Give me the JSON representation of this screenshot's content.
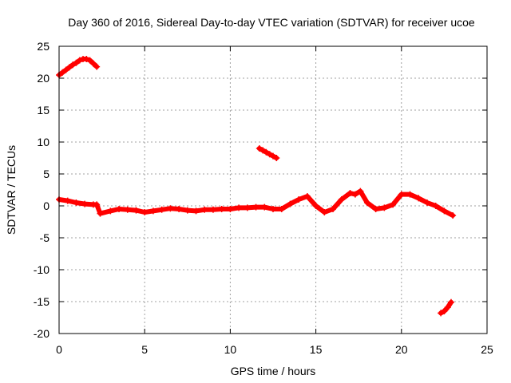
{
  "chart_data": {
    "type": "scatter",
    "title": "Day 360 of 2016, Sidereal Day-to-day VTEC variation (SDTVAR) for receiver ucoe",
    "xlabel": "GPS time / hours",
    "ylabel": "SDTVAR / TECUs",
    "xlim": [
      0,
      25
    ],
    "ylim": [
      -20,
      25
    ],
    "xticks": [
      0,
      5,
      10,
      15,
      20,
      25
    ],
    "yticks": [
      -20,
      -15,
      -10,
      -5,
      0,
      5,
      10,
      15,
      20,
      25
    ],
    "grid": true,
    "marker": "+",
    "colors": {
      "series": "#ff0000",
      "axis": "#000000",
      "grid": "#a0a0a0"
    },
    "series": [
      {
        "name": "segment-early-high",
        "x": [
          0.0,
          0.2,
          0.4,
          0.6,
          0.8,
          1.0,
          1.2,
          1.4,
          1.6,
          1.8,
          2.0,
          2.2
        ],
        "y": [
          20.5,
          20.9,
          21.3,
          21.7,
          22.1,
          22.4,
          22.8,
          23.0,
          23.0,
          22.8,
          22.3,
          21.8
        ]
      },
      {
        "name": "segment-main",
        "x": [
          0.0,
          0.5,
          1.0,
          1.5,
          2.0,
          2.2,
          2.4,
          3.0,
          3.5,
          4.0,
          4.5,
          5.0,
          5.5,
          6.0,
          6.5,
          7.0,
          7.5,
          8.0,
          8.5,
          9.0,
          9.5,
          10.0,
          10.5,
          11.0,
          11.5,
          12.0,
          12.5,
          13.0,
          13.5,
          14.0,
          14.5,
          15.0,
          15.5,
          16.0,
          16.5,
          17.0,
          17.3,
          17.6,
          18.0,
          18.5,
          19.0,
          19.5,
          20.0,
          20.5,
          21.0,
          21.5,
          22.0,
          22.5,
          23.0
        ],
        "y": [
          1.0,
          0.8,
          0.5,
          0.3,
          0.2,
          0.2,
          -1.2,
          -0.8,
          -0.5,
          -0.6,
          -0.7,
          -1.0,
          -0.8,
          -0.6,
          -0.4,
          -0.5,
          -0.7,
          -0.8,
          -0.6,
          -0.6,
          -0.5,
          -0.5,
          -0.3,
          -0.3,
          -0.2,
          -0.2,
          -0.5,
          -0.5,
          0.3,
          1.0,
          1.5,
          0.0,
          -1.0,
          -0.5,
          1.0,
          2.0,
          1.8,
          2.3,
          0.5,
          -0.5,
          -0.3,
          0.2,
          1.8,
          1.8,
          1.2,
          0.5,
          0.0,
          -0.8,
          -1.5
        ]
      },
      {
        "name": "segment-mid-high",
        "x": [
          11.7,
          11.9,
          12.1,
          12.3,
          12.5,
          12.7
        ],
        "y": [
          9.0,
          8.7,
          8.4,
          8.1,
          7.8,
          7.5
        ]
      },
      {
        "name": "segment-late-low",
        "x": [
          22.3,
          22.5,
          22.7,
          22.9
        ],
        "y": [
          -16.8,
          -16.5,
          -15.9,
          -15.1
        ]
      }
    ]
  }
}
